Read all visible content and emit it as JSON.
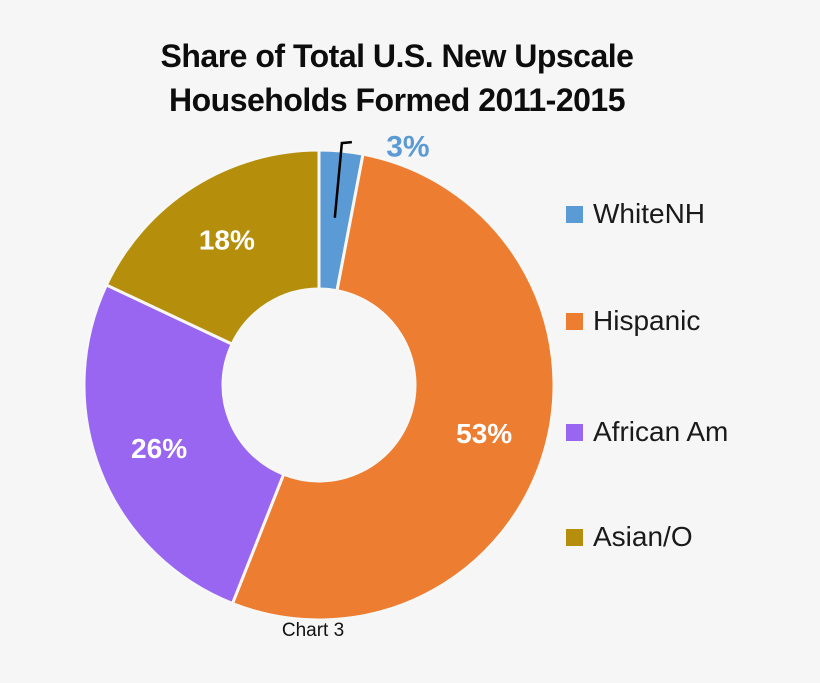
{
  "window": {
    "background": "#F6F6F6"
  },
  "title": {
    "line1": "Share of Total U.S. New Upscale",
    "line2": "Households Formed 2011-2015"
  },
  "caption": "Chart 3",
  "legend": {
    "position": "right",
    "items": [
      {
        "label": "WhiteNH",
        "color": "#5B9BD5"
      },
      {
        "label": "Hispanic",
        "color": "#ED7D31"
      },
      {
        "label": "African Am",
        "color": "#9966F2"
      },
      {
        "label": "Asian/O",
        "color": "#B58F0B"
      }
    ]
  },
  "chart_data": {
    "type": "pie",
    "subtype": "donut",
    "title": "Share of Total U.S. New Upscale Households Formed 2011-2015",
    "caption": "Chart 3",
    "categories": [
      "WhiteNH",
      "Hispanic",
      "African Am",
      "Asian/O"
    ],
    "values": [
      3,
      53,
      26,
      18
    ],
    "unit": "%",
    "labels": [
      "3%",
      "53%",
      "26%",
      "18%"
    ],
    "colors": [
      "#5B9BD5",
      "#ED7D31",
      "#9966F2",
      "#B58F0B"
    ],
    "label_colors": [
      "#5B9BD5",
      "#FFFFFF",
      "#FFFFFF",
      "#FFFFFF"
    ],
    "label_placement": [
      "outside-callout",
      "inside",
      "inside",
      "inside"
    ],
    "start_angle_deg": 0,
    "direction": "clockwise",
    "donut_hole_ratio": 0.41,
    "legend_position": "right",
    "grid": false
  }
}
